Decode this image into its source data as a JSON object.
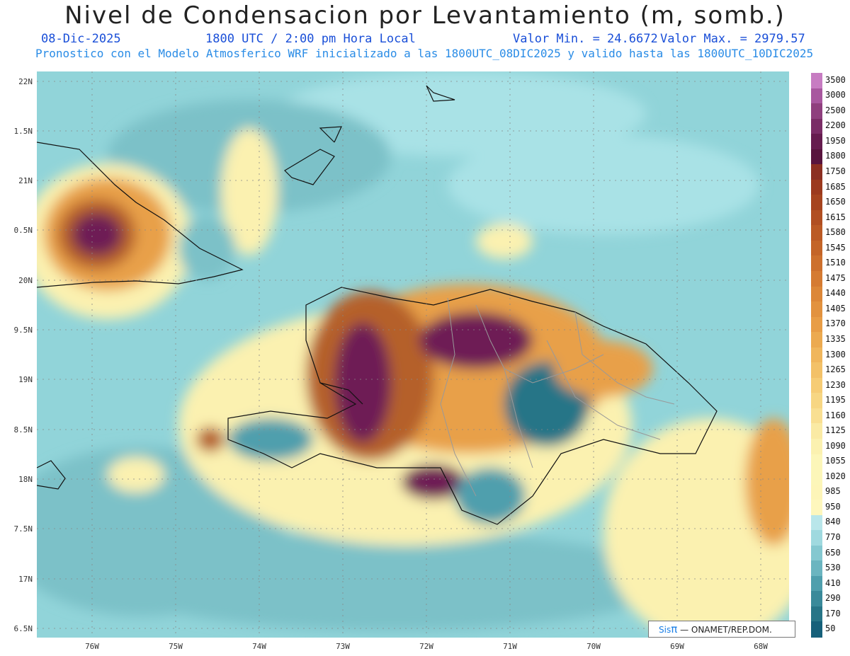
{
  "header": {
    "title": "Nivel de Condensacion por Levantamiento (m, somb.)",
    "date": "08-Dic-2025",
    "time": "1800 UTC / 2:00 pm Hora Local",
    "valmin": "Valor Min. = 24.6672",
    "valmax": "Valor Max. = 2979.57",
    "info": "Pronostico con el Modelo Atmosferico WRF inicializado a las 1800UTC_08DIC2025 y valido hasta las  1800UTC_10DIC2025"
  },
  "axes": {
    "lat_labels": [
      "22N",
      "1.5N",
      "21N",
      "0.5N",
      "20N",
      "9.5N",
      "19N",
      "8.5N",
      "18N",
      "7.5N",
      "17N",
      "6.5N"
    ],
    "lon_labels": [
      "76W",
      "75W",
      "74W",
      "73W",
      "72W",
      "71W",
      "70W",
      "69W",
      "68W"
    ]
  },
  "colorbar": {
    "labels": [
      "3500",
      "3000",
      "2500",
      "2200",
      "1950",
      "1800",
      "1750",
      "1685",
      "1650",
      "1615",
      "1580",
      "1545",
      "1510",
      "1475",
      "1440",
      "1405",
      "1370",
      "1335",
      "1300",
      "1265",
      "1230",
      "1195",
      "1160",
      "1125",
      "1090",
      "1055",
      "1020",
      "985",
      "950",
      "840",
      "770",
      "650",
      "530",
      "410",
      "290",
      "170",
      "50"
    ],
    "colors": [
      "#c77cc2",
      "#a8579f",
      "#8f3f7e",
      "#7a2c66",
      "#661c4f",
      "#58143e",
      "#8c2f22",
      "#9c3a1e",
      "#a6441f",
      "#b14f22",
      "#bb5a25",
      "#c46528",
      "#cd702d",
      "#d57b32",
      "#dc8738",
      "#e2923f",
      "#e89d46",
      "#ecaa50",
      "#f0b65c",
      "#f3c168",
      "#f6cc75",
      "#f7d683",
      "#f9df92",
      "#faeaa4",
      "#fbf1b0",
      "#fcf6b9",
      "#fcf6b9",
      "#fdf5b8",
      "#fef7bd",
      "#b9e6ea",
      "#9fd9df",
      "#84c8d0",
      "#6bb5c0",
      "#4f9fad",
      "#3a8a9a",
      "#277587",
      "#16607a"
    ]
  },
  "credit": {
    "sis": "Sis",
    "pi": "π",
    "text": "— ONAMET/REP.DOM."
  },
  "map_colors": {
    "ocean": "#91d4d9",
    "ocean_dark": "#7cc1c8",
    "light": "#a9e2e6",
    "yellow": "#fbf1b0",
    "orange": "#e8a04a",
    "brown": "#b5602a",
    "purple": "#6e1f55"
  }
}
